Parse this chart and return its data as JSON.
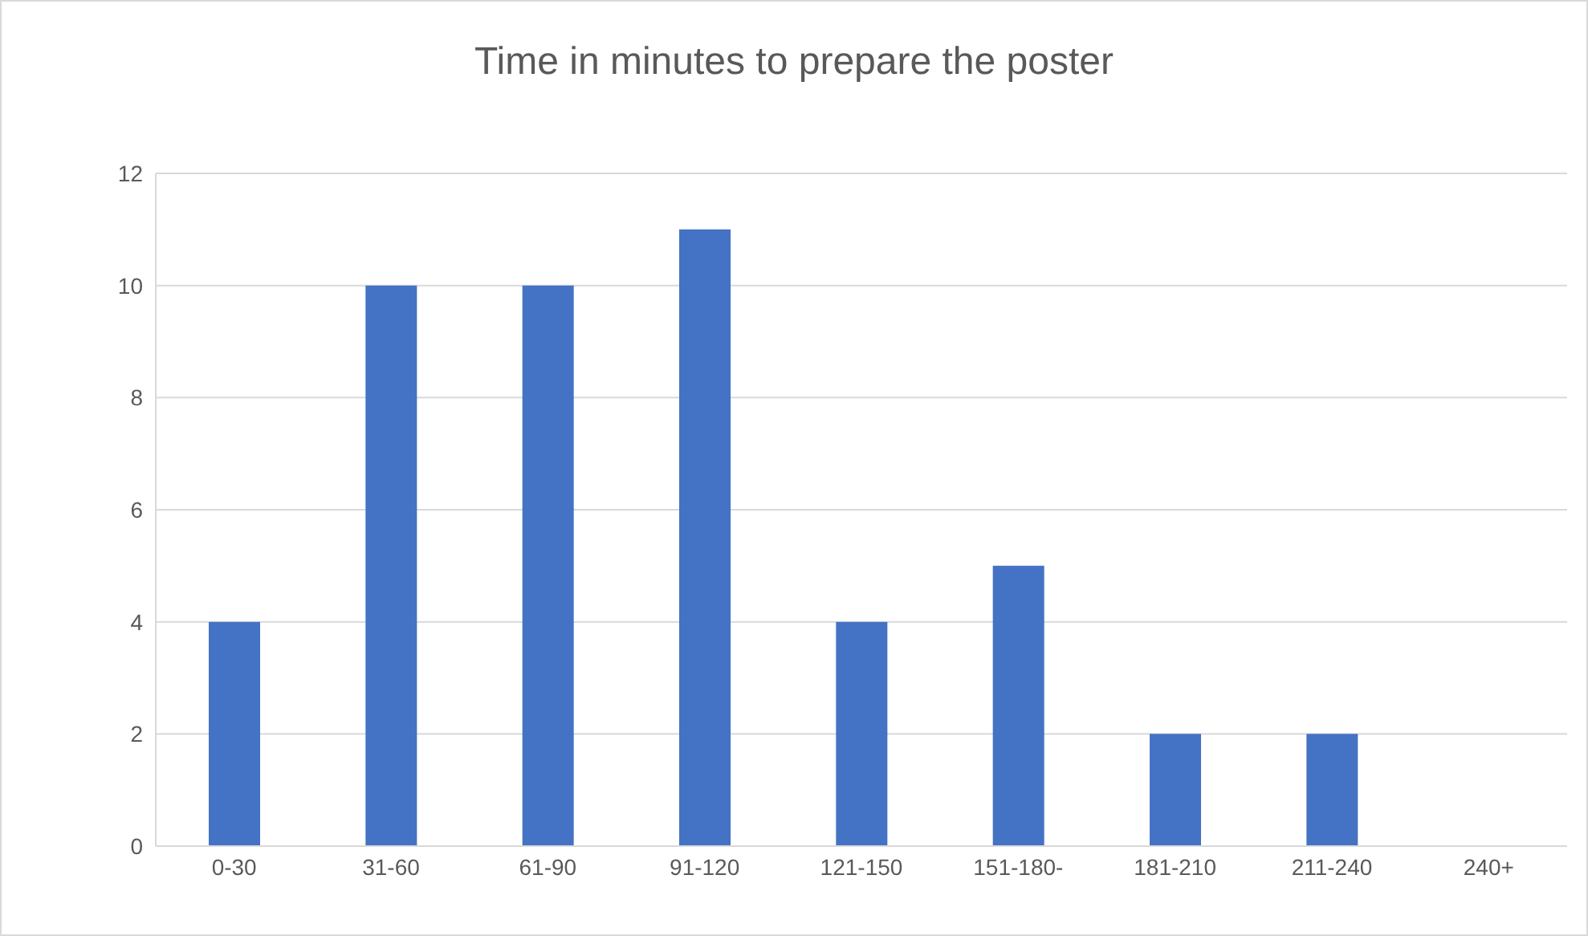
{
  "chart_data": {
    "type": "bar",
    "title": "Time in minutes to prepare the poster",
    "categories": [
      "0-30",
      "31-60",
      "61-90",
      "91-120",
      "121-150",
      "151-180-",
      "181-210",
      "211-240",
      "240+"
    ],
    "values": [
      4,
      10,
      10,
      11,
      4,
      5,
      2,
      2,
      0
    ],
    "color": "#4472c4",
    "ylim": [
      0,
      12
    ],
    "yticks": [
      0,
      2,
      4,
      6,
      8,
      10,
      12
    ],
    "grid": "y"
  }
}
